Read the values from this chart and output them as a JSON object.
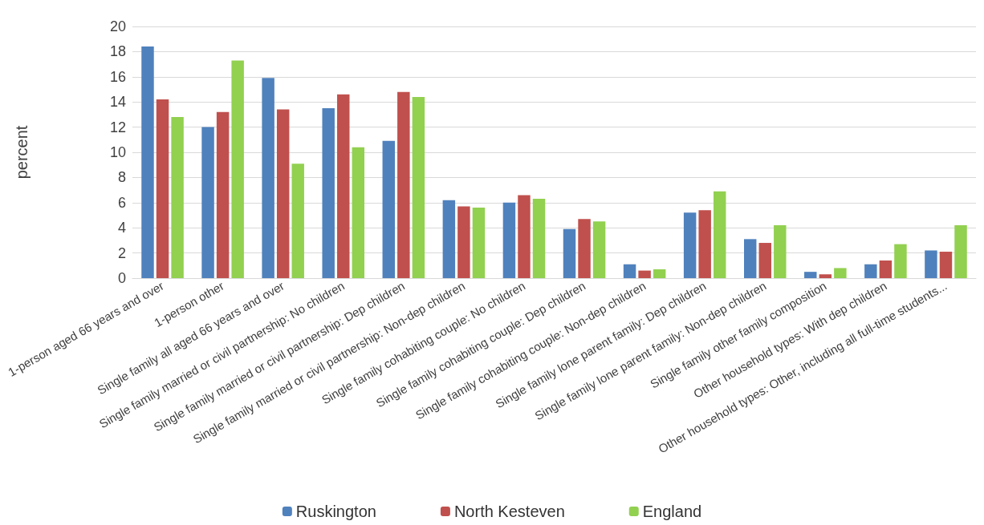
{
  "chart_data": {
    "type": "bar",
    "ylabel": "percent",
    "categories": [
      "1-person aged 66 years and over",
      "1-person other",
      "Single family all aged 66 years and over",
      "Single family married or civil partnership: No children",
      "Single family married or civil partnership: Dep children",
      "Single family married or civil partnership: Non-dep children",
      "Single family cohabiting couple: No children",
      "Single family cohabiting couple: Dep children",
      "Single family cohabiting couple: Non-dep children",
      "Single family lone parent family: Dep children",
      "Single family lone parent family: Non-dep children",
      "Single family other family composition",
      "Other household types: With dep children",
      "Other household types: Other, including all full-time students..."
    ],
    "series": [
      {
        "name": "Ruskington",
        "color": "#4f81bd",
        "values": [
          18.4,
          12.0,
          15.9,
          13.5,
          10.9,
          6.2,
          6.0,
          3.9,
          1.1,
          5.2,
          3.1,
          0.5,
          1.1,
          2.2
        ]
      },
      {
        "name": "North Kesteven",
        "color": "#c0504d",
        "values": [
          14.2,
          13.2,
          13.4,
          14.6,
          14.8,
          5.7,
          6.6,
          4.7,
          0.6,
          5.4,
          2.8,
          0.3,
          1.4,
          2.1
        ]
      },
      {
        "name": "England",
        "color": "#92d050",
        "values": [
          12.8,
          17.3,
          9.1,
          10.4,
          14.4,
          5.6,
          6.3,
          4.5,
          0.7,
          6.9,
          4.2,
          0.8,
          2.7,
          4.2
        ]
      }
    ],
    "ylim": [
      0,
      20
    ],
    "yticks": [
      0,
      2,
      4,
      6,
      8,
      10,
      12,
      14,
      16,
      18,
      20
    ],
    "grid": "y",
    "legend": "bottom"
  }
}
